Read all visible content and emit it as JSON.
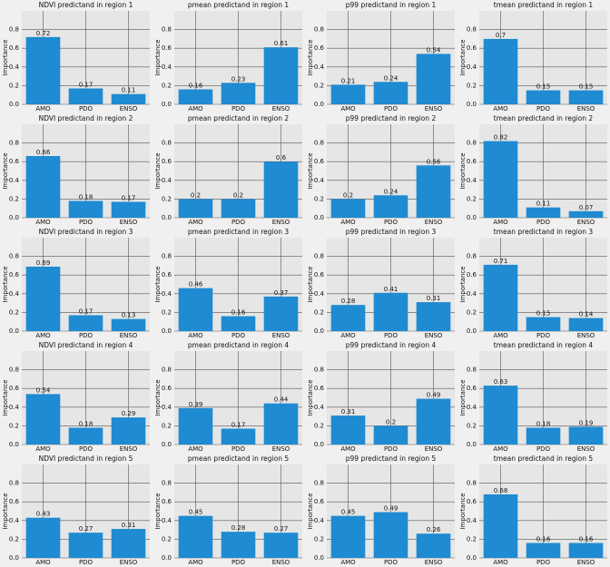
{
  "chart_data": [
    {
      "type": "bar",
      "title": "NDVI predictand in region 1",
      "ylabel": "Importance",
      "categories": [
        "AMO",
        "PDO",
        "ENSO"
      ],
      "values": [
        0.72,
        0.17,
        0.11
      ],
      "color": "#1e8bd2",
      "ylim": [
        0,
        1
      ],
      "yticks": [
        {
          "value": 0,
          "label": "0.0"
        },
        0.2,
        0.4,
        0.6,
        0.8
      ],
      "grid": true
    },
    {
      "type": "bar",
      "title": "pmean predictand in region 1",
      "ylabel": "Importance",
      "categories": [
        "AMO",
        "PDO",
        "ENSO"
      ],
      "values": [
        0.16,
        0.23,
        0.61
      ],
      "color": "#1e8bd2",
      "ylim": [
        0,
        1
      ],
      "yticks": [
        {
          "value": 0,
          "label": "0.0"
        },
        0.2,
        0.4,
        0.6,
        0.8
      ],
      "grid": true
    },
    {
      "type": "bar",
      "title": "p99 predictand in region 1",
      "ylabel": "Importance",
      "categories": [
        "AMO",
        "PDO",
        "ENSO"
      ],
      "values": [
        0.21,
        0.24,
        0.54
      ],
      "color": "#1e8bd2",
      "ylim": [
        0,
        1
      ],
      "yticks": [
        {
          "value": 0,
          "label": "0.0"
        },
        0.2,
        0.4,
        0.6,
        0.8
      ],
      "grid": true
    },
    {
      "type": "bar",
      "title": "tmean predictand in region 1",
      "ylabel": "Importance",
      "categories": [
        "AMO",
        "PDO",
        "ENSO"
      ],
      "values": [
        0.7,
        0.15,
        0.15
      ],
      "color": "#1e8bd2",
      "ylim": [
        0,
        1
      ],
      "yticks": [
        {
          "value": 0,
          "label": "0.0"
        },
        0.2,
        0.4,
        0.6,
        0.8
      ],
      "grid": true
    },
    {
      "type": "bar",
      "title": "NDVI predictand in region 2",
      "ylabel": "Importance",
      "categories": [
        "AMO",
        "PDO",
        "ENSO"
      ],
      "values": [
        0.66,
        0.18,
        0.17
      ],
      "color": "#1e8bd2",
      "ylim": [
        0,
        1
      ],
      "yticks": [
        {
          "value": 0,
          "label": "0.0"
        },
        0.2,
        0.4,
        0.6,
        0.8
      ],
      "grid": true
    },
    {
      "type": "bar",
      "title": "pmean predictand in region 2",
      "ylabel": "Importance",
      "categories": [
        "AMO",
        "PDO",
        "ENSO"
      ],
      "values": [
        0.2,
        0.2,
        0.6
      ],
      "color": "#1e8bd2",
      "ylim": [
        0,
        1
      ],
      "yticks": [
        {
          "value": 0,
          "label": "0.0"
        },
        0.2,
        0.4,
        0.6,
        0.8
      ],
      "grid": true
    },
    {
      "type": "bar",
      "title": "p99 predictand in region 2",
      "ylabel": "Importance",
      "categories": [
        "AMO",
        "PDO",
        "ENSO"
      ],
      "values": [
        0.2,
        0.24,
        0.56
      ],
      "color": "#1e8bd2",
      "ylim": [
        0,
        1
      ],
      "yticks": [
        {
          "value": 0,
          "label": "0.0"
        },
        0.2,
        0.4,
        0.6,
        0.8
      ],
      "grid": true
    },
    {
      "type": "bar",
      "title": "tmean predictand in region 2",
      "ylabel": "Importance",
      "categories": [
        "AMO",
        "PDO",
        "ENSO"
      ],
      "values": [
        0.82,
        0.11,
        0.07
      ],
      "color": "#1e8bd2",
      "ylim": [
        0,
        1
      ],
      "yticks": [
        {
          "value": 0,
          "label": "0.0"
        },
        0.2,
        0.4,
        0.6,
        0.8
      ],
      "grid": true
    },
    {
      "type": "bar",
      "title": "NDVI predictand in region 3",
      "ylabel": "Importance",
      "categories": [
        "AMO",
        "PDO",
        "ENSO"
      ],
      "values": [
        0.69,
        0.17,
        0.13
      ],
      "color": "#1e8bd2",
      "ylim": [
        0,
        1
      ],
      "yticks": [
        {
          "value": 0,
          "label": "0.0"
        },
        0.2,
        0.4,
        0.6,
        0.8
      ],
      "grid": true
    },
    {
      "type": "bar",
      "title": "pmean predictand in region 3",
      "ylabel": "Importance",
      "categories": [
        "AMO",
        "PDO",
        "ENSO"
      ],
      "values": [
        0.46,
        0.16,
        0.37
      ],
      "color": "#1e8bd2",
      "ylim": [
        0,
        1
      ],
      "yticks": [
        {
          "value": 0,
          "label": "0.0"
        },
        0.2,
        0.4,
        0.6,
        0.8
      ],
      "grid": true
    },
    {
      "type": "bar",
      "title": "p99 predictand in region 3",
      "ylabel": "Importance",
      "categories": [
        "AMO",
        "PDO",
        "ENSO"
      ],
      "values": [
        0.28,
        0.41,
        0.31
      ],
      "color": "#1e8bd2",
      "ylim": [
        0,
        1
      ],
      "yticks": [
        {
          "value": 0,
          "label": "0.0"
        },
        0.2,
        0.4,
        0.6,
        0.8
      ],
      "grid": true
    },
    {
      "type": "bar",
      "title": "tmean predictand in region 3",
      "ylabel": "Importance",
      "categories": [
        "AMO",
        "PDO",
        "ENSO"
      ],
      "values": [
        0.71,
        0.15,
        0.14
      ],
      "color": "#1e8bd2",
      "ylim": [
        0,
        1
      ],
      "yticks": [
        {
          "value": 0,
          "label": "0.0"
        },
        0.2,
        0.4,
        0.6,
        0.8
      ],
      "grid": true
    },
    {
      "type": "bar",
      "title": "NDVI predictand in region 4",
      "ylabel": "Importance",
      "categories": [
        "AMO",
        "PDO",
        "ENSO"
      ],
      "values": [
        0.54,
        0.18,
        0.29
      ],
      "color": "#1e8bd2",
      "ylim": [
        0,
        1
      ],
      "yticks": [
        {
          "value": 0,
          "label": "0.0"
        },
        0.2,
        0.4,
        0.6,
        0.8
      ],
      "grid": true
    },
    {
      "type": "bar",
      "title": "pmean predictand in region 4",
      "ylabel": "Importance",
      "categories": [
        "AMO",
        "PDO",
        "ENSO"
      ],
      "values": [
        0.39,
        0.17,
        0.44
      ],
      "color": "#1e8bd2",
      "ylim": [
        0,
        1
      ],
      "yticks": [
        {
          "value": 0,
          "label": "0.0"
        },
        0.2,
        0.4,
        0.6,
        0.8
      ],
      "grid": true
    },
    {
      "type": "bar",
      "title": "p99 predictand in region 4",
      "ylabel": "Importance",
      "categories": [
        "AMO",
        "PDO",
        "ENSO"
      ],
      "values": [
        0.31,
        0.2,
        0.49
      ],
      "color": "#1e8bd2",
      "ylim": [
        0,
        1
      ],
      "yticks": [
        {
          "value": 0,
          "label": "0.0"
        },
        0.2,
        0.4,
        0.6,
        0.8
      ],
      "grid": true
    },
    {
      "type": "bar",
      "title": "tmean predictand in region 4",
      "ylabel": "Importance",
      "categories": [
        "AMO",
        "PDO",
        "ENSO"
      ],
      "values": [
        0.63,
        0.18,
        0.19
      ],
      "color": "#1e8bd2",
      "ylim": [
        0,
        1
      ],
      "yticks": [
        {
          "value": 0,
          "label": "0.0"
        },
        0.2,
        0.4,
        0.6,
        0.8
      ],
      "grid": true
    },
    {
      "type": "bar",
      "title": "NDVI predictand in region 5",
      "ylabel": "Importance",
      "categories": [
        "AMO",
        "PDO",
        "ENSO"
      ],
      "values": [
        0.43,
        0.27,
        0.31
      ],
      "color": "#1e8bd2",
      "ylim": [
        0,
        1
      ],
      "yticks": [
        {
          "value": 0,
          "label": "0.0"
        },
        0.2,
        0.4,
        0.6,
        0.8
      ],
      "grid": true
    },
    {
      "type": "bar",
      "title": "pmean predictand in region 5",
      "ylabel": "Importance",
      "categories": [
        "AMO",
        "PDO",
        "ENSO"
      ],
      "values": [
        0.45,
        0.28,
        0.27
      ],
      "color": "#1e8bd2",
      "ylim": [
        0,
        1
      ],
      "yticks": [
        {
          "value": 0,
          "label": "0.0"
        },
        0.2,
        0.4,
        0.6,
        0.8
      ],
      "grid": true
    },
    {
      "type": "bar",
      "title": "p99 predictand in region 5",
      "ylabel": "Importance",
      "categories": [
        "AMO",
        "PDO",
        "ENSO"
      ],
      "values": [
        0.45,
        0.49,
        0.26
      ],
      "color": "#1e8bd2",
      "ylim": [
        0,
        1
      ],
      "yticks": [
        {
          "value": 0,
          "label": "0.0"
        },
        0.2,
        0.4,
        0.6,
        0.8
      ],
      "grid": true
    },
    {
      "type": "bar",
      "title": "tmean predictand in region 5",
      "ylabel": "Importance",
      "categories": [
        "AMO",
        "PDO",
        "ENSO"
      ],
      "values": [
        0.68,
        0.16,
        0.16
      ],
      "color": "#1e8bd2",
      "ylim": [
        0,
        1
      ],
      "yticks": [
        {
          "value": 0,
          "label": "0.0"
        },
        0.2,
        0.4,
        0.6,
        0.8
      ],
      "grid": true
    }
  ]
}
